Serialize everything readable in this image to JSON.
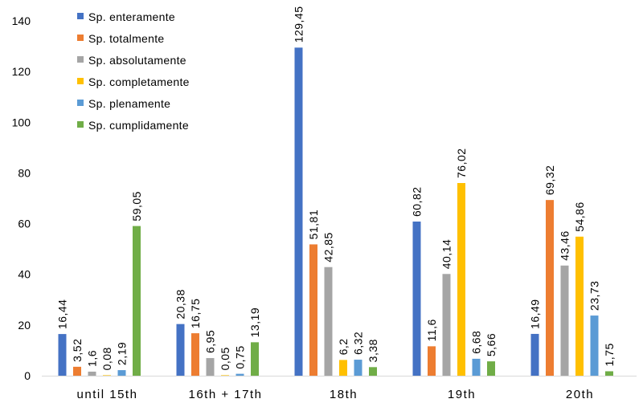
{
  "chart_data": {
    "type": "bar",
    "categories": [
      "until 15th",
      "16th + 17th",
      "18th",
      "19th",
      "20th"
    ],
    "series": [
      {
        "name": "Sp. enteramente",
        "color": "#4472C4",
        "values": [
          16.44,
          20.38,
          129.45,
          60.82,
          16.49
        ],
        "labels": [
          "16,44",
          "20,38",
          "129,45",
          "60,82",
          "16,49"
        ]
      },
      {
        "name": "Sp. totalmente",
        "color": "#ED7D31",
        "values": [
          3.52,
          16.75,
          51.81,
          11.6,
          69.32
        ],
        "labels": [
          "3,52",
          "16,75",
          "51,81",
          "11,6",
          "69,32"
        ]
      },
      {
        "name": "Sp. absolutamente",
        "color": "#A5A5A5",
        "values": [
          1.6,
          6.95,
          42.85,
          40.14,
          43.46
        ],
        "labels": [
          "1,6",
          "6,95",
          "42,85",
          "40,14",
          "43,46"
        ]
      },
      {
        "name": "Sp. completamente",
        "color": "#FFC000",
        "values": [
          0.08,
          0.05,
          6.2,
          76.02,
          54.86
        ],
        "labels": [
          "0,08",
          "0,05",
          "6,2",
          "76,02",
          "54,86"
        ]
      },
      {
        "name": "Sp. plenamente",
        "color": "#5B9BD5",
        "values": [
          2.19,
          0.75,
          6.32,
          6.68,
          23.73
        ],
        "labels": [
          "2,19",
          "0,75",
          "6,32",
          "6,68",
          "23,73"
        ]
      },
      {
        "name": "Sp. cumplidamente",
        "color": "#70AD47",
        "values": [
          59.05,
          13.19,
          3.38,
          5.66,
          1.75
        ],
        "labels": [
          "59,05",
          "13,19",
          "3,38",
          "5,66",
          "1,75"
        ]
      }
    ],
    "ylim": [
      0,
      140
    ],
    "yticks": [
      0,
      20,
      40,
      60,
      80,
      100,
      120,
      140
    ],
    "grid": false,
    "legend_position": "top-left"
  }
}
